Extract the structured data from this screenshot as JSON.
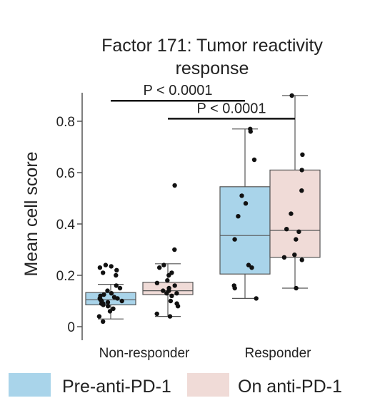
{
  "chart_data": {
    "type": "box",
    "title_lines": [
      "Factor 171: Tumor reactivity",
      "response"
    ],
    "ylabel": "Mean cell score",
    "ylim": [
      0,
      0.9
    ],
    "yticks": [
      {
        "value": 0,
        "label": "0"
      },
      {
        "value": 0.2,
        "label": "0.2"
      },
      {
        "value": 0.4,
        "label": "0.4"
      },
      {
        "value": 0.6,
        "label": "0.6"
      },
      {
        "value": 0.8,
        "label": "0.8"
      }
    ],
    "categories": [
      "Non-responder",
      "Responder"
    ],
    "series": [
      {
        "name": "Pre-anti-PD-1",
        "color": "#a9d4ea",
        "boxes": [
          {
            "category": 0,
            "whisker_low": 0.03,
            "q1": 0.085,
            "median": 0.105,
            "q3": 0.133,
            "whisker_high": 0.165,
            "points": [
              0.02,
              0.04,
              0.06,
              0.07,
              0.08,
              0.085,
              0.09,
              0.09,
              0.095,
              0.1,
              0.1,
              0.105,
              0.11,
              0.11,
              0.115,
              0.12,
              0.125,
              0.13,
              0.14,
              0.15,
              0.16,
              0.2,
              0.21,
              0.22,
              0.23,
              0.235,
              0.24
            ]
          },
          {
            "category": 1,
            "whisker_low": 0.11,
            "q1": 0.205,
            "median": 0.355,
            "q3": 0.545,
            "whisker_high": 0.77,
            "points": [
              0.11,
              0.15,
              0.16,
              0.23,
              0.24,
              0.34,
              0.43,
              0.48,
              0.51,
              0.65,
              0.76,
              0.77
            ]
          }
        ]
      },
      {
        "name": "On anti-PD-1",
        "color": "#f0dbd7",
        "boxes": [
          {
            "category": 0,
            "whisker_low": 0.04,
            "q1": 0.125,
            "median": 0.14,
            "q3": 0.173,
            "whisker_high": 0.245,
            "points": [
              0.04,
              0.05,
              0.08,
              0.09,
              0.1,
              0.12,
              0.13,
              0.13,
              0.14,
              0.14,
              0.15,
              0.16,
              0.17,
              0.18,
              0.2,
              0.21,
              0.23,
              0.24,
              0.3,
              0.55
            ]
          },
          {
            "category": 1,
            "whisker_low": 0.15,
            "q1": 0.27,
            "median": 0.375,
            "q3": 0.61,
            "whisker_high": 0.9,
            "points": [
              0.15,
              0.26,
              0.27,
              0.28,
              0.34,
              0.37,
              0.38,
              0.44,
              0.53,
              0.61,
              0.67,
              0.9
            ]
          }
        ]
      }
    ],
    "annotations": [
      {
        "text": "P < 0.0001",
        "from": {
          "category": 0,
          "series": 0
        },
        "to": {
          "category": 1,
          "series": 0
        },
        "y": 0.88
      },
      {
        "text": "P < 0.0001",
        "from": {
          "category": 0,
          "series": 1
        },
        "to": {
          "category": 1,
          "series": 1
        },
        "y": 0.81
      }
    ],
    "legend": {
      "position": "bottom"
    }
  }
}
